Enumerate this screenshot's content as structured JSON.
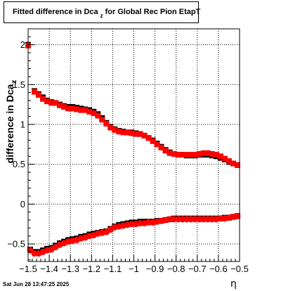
{
  "chart_data": {
    "type": "scatter",
    "title_main": "Fitted difference in Dca",
    "title_sub": "z",
    "title_tail": "for Global Rec Pion EtapT",
    "ylabel_main": "difference in Dca",
    "ylabel_sub": "z",
    "xlabel": "η",
    "xlim": [
      -1.5,
      -0.5
    ],
    "ylim": [
      -0.72,
      2.2
    ],
    "grid": true,
    "x_ticks": [
      "−1.5",
      "−1.4",
      "−1.3",
      "−1.2",
      "−1.1",
      "−1",
      "−0.9",
      "−0.8",
      "−0.7",
      "−0.6",
      "−0.5"
    ],
    "y_ticks": [
      "−0.5",
      "0",
      "0.5",
      "1",
      "1.5",
      "2"
    ],
    "series": [
      {
        "color": "#000000",
        "x": [
          -1.5,
          -1.47,
          -1.45,
          -1.43,
          -1.41,
          -1.39,
          -1.37,
          -1.35,
          -1.33,
          -1.31,
          -1.29,
          -1.27,
          -1.25,
          -1.23,
          -1.21,
          -1.19,
          -1.17,
          -1.15,
          -1.13,
          -1.11,
          -1.09,
          -1.07,
          -1.05,
          -1.03,
          -1.01,
          -0.99,
          -0.97,
          -0.95,
          -0.93,
          -0.91,
          -0.89,
          -0.87,
          -0.85,
          -0.83,
          -0.81,
          -0.79,
          -0.77,
          -0.75,
          -0.73,
          -0.71,
          -0.69,
          -0.67,
          -0.65,
          -0.63,
          -0.61,
          -0.59,
          -0.57,
          -0.55,
          -0.53,
          -0.51
        ],
        "y": [
          2.0,
          1.42,
          1.38,
          1.34,
          1.3,
          1.28,
          1.27,
          1.25,
          1.23,
          1.22,
          1.22,
          1.21,
          1.2,
          1.19,
          1.18,
          1.16,
          1.13,
          1.08,
          1.02,
          0.97,
          0.94,
          0.92,
          0.91,
          0.9,
          0.9,
          0.89,
          0.88,
          0.86,
          0.83,
          0.8,
          0.76,
          0.72,
          0.68,
          0.65,
          0.63,
          0.62,
          0.62,
          0.61,
          0.61,
          0.61,
          0.62,
          0.62,
          0.62,
          0.61,
          0.6,
          0.58,
          0.56,
          0.53,
          0.51,
          0.49
        ]
      },
      {
        "color": "#ff0000",
        "x": [
          -1.5,
          -1.47,
          -1.45,
          -1.43,
          -1.41,
          -1.39,
          -1.37,
          -1.35,
          -1.33,
          -1.31,
          -1.29,
          -1.27,
          -1.25,
          -1.23,
          -1.21,
          -1.19,
          -1.17,
          -1.15,
          -1.13,
          -1.11,
          -1.09,
          -1.07,
          -1.05,
          -1.03,
          -1.01,
          -0.99,
          -0.97,
          -0.95,
          -0.93,
          -0.91,
          -0.89,
          -0.87,
          -0.85,
          -0.83,
          -0.81,
          -0.79,
          -0.77,
          -0.75,
          -0.73,
          -0.71,
          -0.69,
          -0.67,
          -0.65,
          -0.63,
          -0.61,
          -0.59,
          -0.57,
          -0.55,
          -0.53,
          -0.51
        ],
        "y": [
          1.99,
          1.41,
          1.37,
          1.32,
          1.29,
          1.27,
          1.27,
          1.24,
          1.22,
          1.2,
          1.2,
          1.19,
          1.18,
          1.18,
          1.16,
          1.14,
          1.11,
          1.06,
          1.01,
          0.96,
          0.93,
          0.91,
          0.9,
          0.9,
          0.89,
          0.88,
          0.88,
          0.86,
          0.83,
          0.79,
          0.75,
          0.71,
          0.67,
          0.64,
          0.63,
          0.62,
          0.62,
          0.62,
          0.62,
          0.62,
          0.63,
          0.64,
          0.64,
          0.63,
          0.62,
          0.6,
          0.57,
          0.54,
          0.51,
          0.49
        ]
      },
      {
        "color": "#000000",
        "x": [
          -1.49,
          -1.47,
          -1.45,
          -1.43,
          -1.41,
          -1.39,
          -1.37,
          -1.35,
          -1.33,
          -1.31,
          -1.29,
          -1.27,
          -1.25,
          -1.23,
          -1.21,
          -1.19,
          -1.17,
          -1.15,
          -1.13,
          -1.11,
          -1.09,
          -1.07,
          -1.05,
          -1.03,
          -1.01,
          -0.99,
          -0.97,
          -0.95,
          -0.93,
          -0.91,
          -0.89,
          -0.87,
          -0.85,
          -0.83,
          -0.81,
          -0.79,
          -0.77,
          -0.75,
          -0.73,
          -0.71,
          -0.69,
          -0.67,
          -0.65,
          -0.63,
          -0.61,
          -0.59,
          -0.57,
          -0.55,
          -0.53,
          -0.51
        ],
        "y": [
          -0.57,
          -0.6,
          -0.6,
          -0.58,
          -0.56,
          -0.55,
          -0.52,
          -0.49,
          -0.47,
          -0.45,
          -0.44,
          -0.43,
          -0.41,
          -0.4,
          -0.38,
          -0.37,
          -0.36,
          -0.35,
          -0.34,
          -0.31,
          -0.28,
          -0.26,
          -0.25,
          -0.24,
          -0.23,
          -0.23,
          -0.22,
          -0.22,
          -0.22,
          -0.22,
          -0.21,
          -0.21,
          -0.2,
          -0.19,
          -0.18,
          -0.18,
          -0.18,
          -0.18,
          -0.18,
          -0.18,
          -0.18,
          -0.18,
          -0.18,
          -0.18,
          -0.18,
          -0.18,
          -0.17,
          -0.17,
          -0.16,
          -0.15
        ]
      },
      {
        "color": "#ff0000",
        "x": [
          -1.49,
          -1.47,
          -1.45,
          -1.43,
          -1.41,
          -1.39,
          -1.37,
          -1.35,
          -1.33,
          -1.31,
          -1.29,
          -1.27,
          -1.25,
          -1.23,
          -1.21,
          -1.19,
          -1.17,
          -1.15,
          -1.13,
          -1.11,
          -1.09,
          -1.07,
          -1.05,
          -1.03,
          -1.01,
          -0.99,
          -0.97,
          -0.95,
          -0.93,
          -0.91,
          -0.89,
          -0.87,
          -0.85,
          -0.83,
          -0.81,
          -0.79,
          -0.77,
          -0.75,
          -0.73,
          -0.71,
          -0.69,
          -0.67,
          -0.65,
          -0.63,
          -0.61,
          -0.59,
          -0.57,
          -0.55,
          -0.53,
          -0.51
        ],
        "y": [
          -0.58,
          -0.62,
          -0.62,
          -0.6,
          -0.58,
          -0.57,
          -0.54,
          -0.51,
          -0.49,
          -0.47,
          -0.46,
          -0.45,
          -0.43,
          -0.42,
          -0.4,
          -0.39,
          -0.37,
          -0.36,
          -0.35,
          -0.32,
          -0.29,
          -0.28,
          -0.27,
          -0.26,
          -0.25,
          -0.25,
          -0.24,
          -0.24,
          -0.23,
          -0.23,
          -0.22,
          -0.21,
          -0.2,
          -0.19,
          -0.19,
          -0.19,
          -0.19,
          -0.19,
          -0.19,
          -0.19,
          -0.19,
          -0.19,
          -0.19,
          -0.19,
          -0.19,
          -0.18,
          -0.18,
          -0.17,
          -0.16,
          -0.15
        ]
      }
    ]
  },
  "footer": {
    "datestamp": "Sat Jun 28 13:47:25 2025"
  }
}
